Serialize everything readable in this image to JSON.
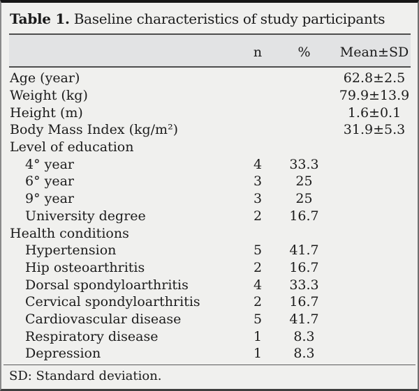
{
  "table": {
    "title_bold": "Table 1.",
    "title_rest": " Baseline characteristics of study participants",
    "columns": {
      "n": "n",
      "pct": "%",
      "mean": "Mean±SD"
    },
    "rows": [
      {
        "label": "Age (year)",
        "indent": 0,
        "n": "",
        "pct": "",
        "mean": "62.8±2.5"
      },
      {
        "label": "Weight (kg)",
        "indent": 0,
        "n": "",
        "pct": "",
        "mean": "79.9±13.9"
      },
      {
        "label": "Height (m)",
        "indent": 0,
        "n": "",
        "pct": "",
        "mean": "1.6±0.1"
      },
      {
        "label": "Body Mass Index (kg/m²)",
        "indent": 0,
        "n": "",
        "pct": "",
        "mean": "31.9±5.3"
      },
      {
        "label": "Level of education",
        "indent": 0,
        "n": "",
        "pct": "",
        "mean": ""
      },
      {
        "label": "4° year",
        "indent": 1,
        "n": "4",
        "pct": "33.3",
        "mean": ""
      },
      {
        "label": "6° year",
        "indent": 1,
        "n": "3",
        "pct": "25",
        "mean": ""
      },
      {
        "label": "9° year",
        "indent": 1,
        "n": "3",
        "pct": "25",
        "mean": ""
      },
      {
        "label": "University degree",
        "indent": 1,
        "n": "2",
        "pct": "16.7",
        "mean": ""
      },
      {
        "label": "Health conditions",
        "indent": 0,
        "n": "",
        "pct": "",
        "mean": ""
      },
      {
        "label": "Hypertension",
        "indent": 1,
        "n": "5",
        "pct": "41.7",
        "mean": ""
      },
      {
        "label": "Hip osteoarthritis",
        "indent": 1,
        "n": "2",
        "pct": "16.7",
        "mean": ""
      },
      {
        "label": "Dorsal spondyloarthritis",
        "indent": 1,
        "n": "4",
        "pct": "33.3",
        "mean": ""
      },
      {
        "label": "Cervical spondyloarthritis",
        "indent": 1,
        "n": "2",
        "pct": "16.7",
        "mean": ""
      },
      {
        "label": "Cardiovascular disease",
        "indent": 1,
        "n": "5",
        "pct": "41.7",
        "mean": ""
      },
      {
        "label": "Respiratory disease",
        "indent": 1,
        "n": "1",
        "pct": "8.3",
        "mean": ""
      },
      {
        "label": "Depression",
        "indent": 1,
        "n": "1",
        "pct": "8.3",
        "mean": ""
      }
    ],
    "footnote": "SD: Standard deviation.",
    "colors": {
      "body_bg": "#f0f0ee",
      "header_bg": "#e2e3e4",
      "rule": "#4d4d4d",
      "top_border": "#161616",
      "text": "#1b1b1b"
    }
  }
}
